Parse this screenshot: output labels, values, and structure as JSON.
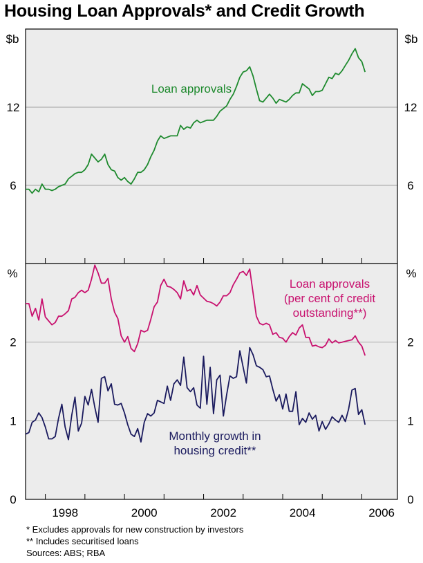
{
  "title": "Housing Loan Approvals* and Credit Growth",
  "colors": {
    "loan_approvals": "#1e8a2e",
    "loan_share": "#c8106e",
    "credit_growth": "#1a1a5e",
    "panel_bg": "#ececec",
    "grid": "#a0a0a0"
  },
  "chart_data": [
    {
      "type": "line",
      "panel": "top",
      "unit_label_left": "$b",
      "unit_label_right": "$b",
      "ylim": [
        0,
        18
      ],
      "yticks": [
        0,
        6,
        12
      ],
      "ytick_labels": [
        "6",
        "12"
      ],
      "gridlines": [
        6,
        12
      ],
      "series": [
        {
          "name": "Loan approvals",
          "label_lines": [
            "Loan approvals"
          ],
          "start": 1997.5,
          "step": 0.08333,
          "values": [
            5.7,
            5.7,
            5.4,
            5.7,
            5.5,
            6.1,
            5.7,
            5.7,
            5.6,
            5.7,
            5.9,
            6.0,
            6.1,
            6.5,
            6.7,
            6.9,
            7.0,
            7.0,
            7.2,
            7.6,
            8.4,
            8.1,
            7.8,
            8.0,
            8.4,
            7.6,
            7.2,
            7.1,
            6.6,
            6.4,
            6.6,
            6.3,
            6.1,
            6.5,
            7.0,
            7.0,
            7.2,
            7.6,
            8.2,
            8.7,
            9.4,
            9.8,
            9.6,
            9.7,
            9.8,
            9.8,
            9.8,
            10.6,
            10.3,
            10.5,
            10.4,
            10.8,
            11.0,
            10.8,
            10.9,
            11.0,
            11.0,
            11.0,
            11.3,
            11.7,
            11.9,
            12.1,
            12.6,
            13.0,
            13.6,
            14.3,
            14.7,
            14.8,
            15.1,
            14.4,
            13.4,
            12.5,
            12.4,
            12.7,
            13.0,
            12.7,
            12.3,
            12.6,
            12.5,
            12.4,
            12.6,
            12.9,
            13.1,
            13.1,
            13.8,
            13.6,
            13.4,
            12.9,
            13.2,
            13.2,
            13.3,
            13.8,
            14.3,
            14.2,
            14.6,
            14.5,
            14.8,
            15.2,
            15.6,
            16.1,
            16.5,
            15.8,
            15.5,
            14.7
          ]
        }
      ]
    },
    {
      "type": "line",
      "panel": "bottom",
      "unit_label_left": "%",
      "unit_label_right": "%",
      "ylim": [
        0,
        3
      ],
      "yticks": [
        0,
        1,
        2
      ],
      "ytick_labels": [
        "0",
        "1",
        "2"
      ],
      "gridlines": [
        1,
        2
      ],
      "xlim": [
        1997.5,
        2006.9
      ],
      "xticks": [
        1998,
        1999,
        2000,
        2001,
        2002,
        2003,
        2004,
        2005,
        2006
      ],
      "xtick_labels": [
        "1998",
        "2000",
        "2002",
        "2004",
        "2006"
      ],
      "xtick_label_years": [
        1998,
        2000,
        2002,
        2004,
        2006
      ],
      "series": [
        {
          "name": "Loan approvals (per cent of credit outstanding**)",
          "label_lines": [
            "Loan approvals",
            "(per cent of credit",
            "outstanding**)"
          ],
          "start": 1997.5,
          "step": 0.08333,
          "values": [
            2.49,
            2.49,
            2.33,
            2.43,
            2.28,
            2.55,
            2.32,
            2.27,
            2.22,
            2.25,
            2.33,
            2.33,
            2.36,
            2.4,
            2.55,
            2.57,
            2.63,
            2.66,
            2.63,
            2.66,
            2.8,
            2.98,
            2.88,
            2.75,
            2.75,
            2.81,
            2.55,
            2.38,
            2.3,
            2.08,
            2.0,
            2.07,
            1.92,
            1.88,
            1.98,
            2.15,
            2.13,
            2.15,
            2.29,
            2.45,
            2.51,
            2.72,
            2.8,
            2.71,
            2.7,
            2.67,
            2.63,
            2.55,
            2.78,
            2.65,
            2.67,
            2.6,
            2.72,
            2.6,
            2.56,
            2.52,
            2.51,
            2.49,
            2.46,
            2.51,
            2.59,
            2.59,
            2.63,
            2.73,
            2.8,
            2.88,
            2.9,
            2.85,
            2.93,
            2.63,
            2.33,
            2.24,
            2.22,
            2.24,
            2.22,
            2.1,
            2.12,
            2.06,
            2.05,
            2.0,
            2.07,
            2.12,
            2.09,
            2.18,
            2.22,
            2.06,
            2.06,
            1.95,
            1.96,
            1.94,
            1.93,
            1.96,
            2.04,
            1.99,
            2.02,
            1.99,
            2.0,
            2.01,
            2.02,
            2.03,
            2.08,
            2.0,
            1.95,
            1.83
          ]
        },
        {
          "name": "Monthly growth in housing credit**",
          "label_lines": [
            "Monthly growth in",
            "housing credit**"
          ],
          "start": 1997.5,
          "step": 0.08333,
          "values": [
            0.83,
            0.85,
            0.98,
            1.01,
            1.1,
            1.04,
            0.92,
            0.77,
            0.77,
            0.8,
            1.03,
            1.21,
            0.92,
            0.76,
            1.07,
            1.3,
            0.87,
            0.97,
            1.31,
            1.2,
            1.4,
            1.17,
            0.98,
            1.54,
            1.56,
            1.38,
            1.47,
            1.21,
            1.2,
            1.22,
            1.1,
            0.95,
            0.83,
            0.8,
            0.9,
            0.73,
            0.98,
            1.09,
            1.06,
            1.1,
            1.26,
            1.24,
            1.22,
            1.44,
            1.26,
            1.47,
            1.52,
            1.45,
            1.81,
            1.42,
            1.37,
            1.42,
            1.2,
            1.16,
            1.82,
            1.21,
            1.68,
            1.09,
            1.52,
            1.58,
            1.06,
            1.33,
            1.57,
            1.54,
            1.56,
            1.89,
            1.68,
            1.48,
            1.93,
            1.84,
            1.7,
            1.68,
            1.65,
            1.56,
            1.57,
            1.4,
            1.25,
            1.33,
            1.15,
            1.34,
            1.12,
            1.12,
            1.37,
            0.95,
            1.03,
            0.98,
            1.1,
            1.02,
            1.07,
            0.87,
            0.99,
            0.89,
            0.96,
            1.05,
            1.01,
            0.98,
            1.07,
            0.99,
            1.15,
            1.39,
            1.41,
            1.08,
            1.14,
            0.95
          ]
        }
      ]
    }
  ],
  "notes": [
    "*   Excludes approvals for new construction by investors",
    "** Includes securitised loans",
    "Sources: ABS; RBA"
  ]
}
